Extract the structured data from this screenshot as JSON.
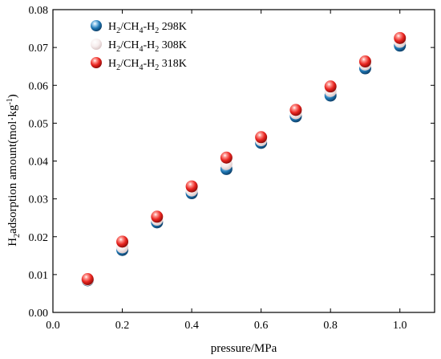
{
  "chart_data": {
    "type": "scatter",
    "xlabel": "pressure/MPa",
    "ylabel": {
      "main": "H",
      "sub": "2",
      "rest": "adsorption amount(mol·kg",
      "sup": "-1",
      "close": ")"
    },
    "xlim": [
      0.0,
      1.1
    ],
    "ylim": [
      0.0,
      0.08
    ],
    "xticks": [
      "0.0",
      "0.2",
      "0.4",
      "0.6",
      "0.8",
      "1.0"
    ],
    "xtick_values": [
      0.0,
      0.2,
      0.4,
      0.6,
      0.8,
      1.0
    ],
    "yticks": [
      "0.00",
      "0.01",
      "0.02",
      "0.03",
      "0.04",
      "0.05",
      "0.06",
      "0.07",
      "0.08"
    ],
    "ytick_values": [
      0.0,
      0.01,
      0.02,
      0.03,
      0.04,
      0.05,
      0.06,
      0.07,
      0.08
    ],
    "legend_position": "top-left",
    "grid": false,
    "series": [
      {
        "name": "H2/CH4-H2 298K",
        "label": {
          "a": "H",
          "s1": "2",
          "b": "/CH",
          "s2": "4",
          "c": "-H",
          "s3": "2",
          "d": " 298K"
        },
        "color": "#1f77b4",
        "x": [
          0.1,
          0.2,
          0.3,
          0.4,
          0.5,
          0.6,
          0.7,
          0.8,
          0.9,
          1.0
        ],
        "y": [
          0.0085,
          0.0165,
          0.0238,
          0.0315,
          0.0379,
          0.0448,
          0.0518,
          0.0573,
          0.0645,
          0.0705
        ]
      },
      {
        "name": "H2/CH4-H2 308K",
        "label": {
          "a": "H",
          "s1": "2",
          "b": "/CH",
          "s2": "4",
          "c": "-H",
          "s3": "2",
          "d": " 308K"
        },
        "color": "#f2e6e6",
        "x": [
          0.1,
          0.2,
          0.3,
          0.4,
          0.5,
          0.6,
          0.7,
          0.8,
          0.9,
          1.0
        ],
        "y": [
          0.0086,
          0.0172,
          0.0245,
          0.0322,
          0.0392,
          0.0455,
          0.0526,
          0.0585,
          0.0655,
          0.0715
        ]
      },
      {
        "name": "H2/CH4-H2 318K",
        "label": {
          "a": "H",
          "s1": "2",
          "b": "/CH",
          "s2": "4",
          "c": "-H",
          "s3": "2",
          "d": " 318K"
        },
        "color": "#e8241f",
        "x": [
          0.1,
          0.2,
          0.3,
          0.4,
          0.5,
          0.6,
          0.7,
          0.8,
          0.9,
          1.0
        ],
        "y": [
          0.0088,
          0.0187,
          0.0253,
          0.0333,
          0.0409,
          0.0463,
          0.0535,
          0.0597,
          0.0663,
          0.0725
        ]
      }
    ]
  }
}
